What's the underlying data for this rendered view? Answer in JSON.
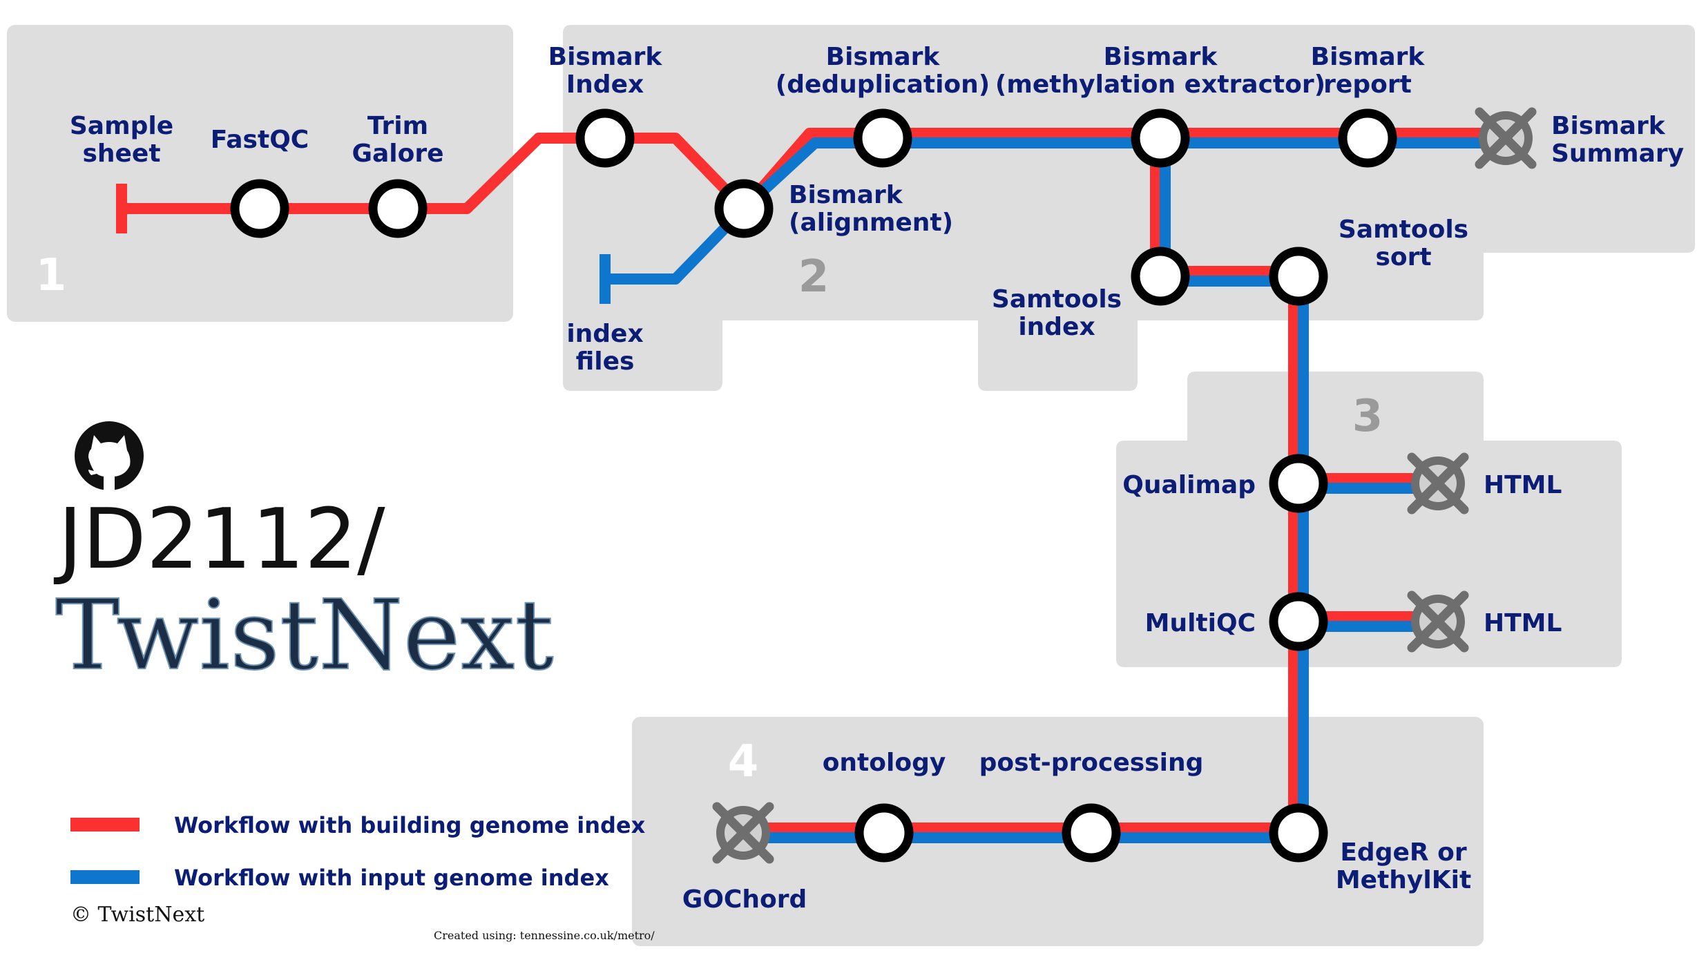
{
  "colors": {
    "red": "#fb3030",
    "blue": "#0e76cc",
    "label": "#0b1d74",
    "panel": "#dedede",
    "end_node": "#6e6e6e"
  },
  "stations": {
    "sample_sheet": "Sample\nsheet",
    "fastqc": "FastQC",
    "trim_galore": "Trim\nGalore",
    "bismark_index": "Bismark\nIndex",
    "index_files": "index\nfiles",
    "bismark_alignment": "Bismark\n(alignment)",
    "bismark_dedup": "Bismark\n(deduplication)",
    "bismark_meth": "Bismark\n(methylation extractor)",
    "bismark_report": "Bismark\nreport",
    "bismark_summary": "Bismark\nSummary",
    "samtools_index": "Samtools\nindex",
    "samtools_sort": "Samtools\nsort",
    "qualimap": "Qualimap",
    "qualimap_html": "HTML",
    "multiqc": "MultiQC",
    "multiqc_html": "HTML",
    "edger": "EdgeR or\nMethylKit",
    "post_processing": "post-processing",
    "ontology": "ontology",
    "gochord": "GOChord"
  },
  "sections": {
    "s1": "1",
    "s2": "2",
    "s3": "3",
    "s4": "4"
  },
  "legend": {
    "red_label": "Workflow with building genome index",
    "blue_label": "Workflow with input genome index"
  },
  "branding": {
    "repo": "JD2112/",
    "name": "TwistNext",
    "copyright": "© TwistNext",
    "credit": "Created using: tennessine.co.uk/metro/",
    "github_icon": "github-icon"
  }
}
